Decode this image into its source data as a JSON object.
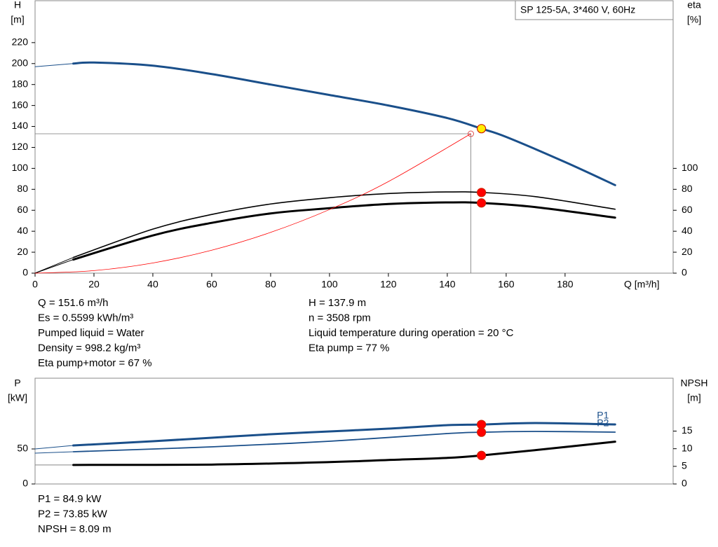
{
  "chart_data": [
    {
      "type": "line",
      "title": "SP 125-5A, 3*460 V, 60Hz",
      "ylabel": [
        "H",
        "[m]"
      ],
      "y2label": [
        "eta",
        "[%]"
      ],
      "xlabel": "Q [m³/h]",
      "xlim": [
        0,
        216.7
      ],
      "xticks": [
        0,
        20,
        40,
        60,
        80,
        100,
        120,
        140,
        160,
        180
      ],
      "ylim": [
        0,
        260
      ],
      "yticks": [
        0,
        20,
        40,
        60,
        80,
        100,
        120,
        140,
        160,
        180,
        200,
        220
      ],
      "y2lim": [
        0,
        260
      ],
      "y2ticks": [
        0,
        20,
        40,
        60,
        80,
        100
      ],
      "series": [
        {
          "color": "#1a4f8a",
          "width": 1,
          "axis": "y",
          "x": [
            0,
            13
          ],
          "values": [
            197,
            200
          ]
        },
        {
          "color": "#1a4f8a",
          "width": 3,
          "axis": "y",
          "x": [
            13,
            20,
            40,
            60,
            80,
            100,
            120,
            140,
            151.6,
            160,
            180,
            197
          ],
          "values": [
            200,
            201,
            198,
            190,
            180,
            170,
            160,
            148,
            137.9,
            130,
            106,
            84
          ]
        },
        {
          "color": "#000000",
          "width": 1,
          "axis": "y2",
          "x": [
            0,
            13
          ],
          "values": [
            0,
            15
          ]
        },
        {
          "color": "#000000",
          "width": 1,
          "axis": "y2",
          "x": [
            0,
            13
          ],
          "values": [
            0,
            13
          ]
        },
        {
          "color": "#000000",
          "width": 1.6,
          "axis": "y2",
          "x": [
            13,
            40,
            60,
            80,
            100,
            120,
            140,
            151.6,
            170,
            197
          ],
          "values": [
            15,
            42,
            56,
            66,
            72,
            76,
            77.5,
            77,
            73,
            61
          ]
        },
        {
          "color": "#000000",
          "width": 3,
          "axis": "y2",
          "x": [
            13,
            40,
            60,
            80,
            100,
            120,
            140,
            151.6,
            170,
            197
          ],
          "values": [
            13,
            36,
            48,
            57,
            62,
            66,
            67.5,
            67,
            63,
            53
          ]
        },
        {
          "color": "#ff0000",
          "width": 0.8,
          "axis": "y",
          "x": [
            0,
            20,
            40,
            60,
            80,
            100,
            120,
            148
          ],
          "values": [
            0,
            2.4,
            9.7,
            21.9,
            38.9,
            60.7,
            87.4,
            133
          ]
        }
      ],
      "guide": {
        "x": 148,
        "y": 133
      },
      "markers": [
        {
          "x": 151.6,
          "y": 137.9,
          "axis": "y",
          "color": "#ffee00"
        },
        {
          "x": 151.6,
          "y": 77,
          "axis": "y2",
          "color": "#ff0000"
        },
        {
          "x": 151.6,
          "y": 67,
          "axis": "y2",
          "color": "#ff0000"
        }
      ],
      "annotations": [
        [
          "Q = 151.6 m³/h",
          "Es = 0.5599 kWh/m³",
          "Pumped liquid = Water",
          "Density = 998.2 kg/m³",
          "Eta pump+motor = 67 %"
        ],
        [
          "H = 137.9 m",
          "n = 3508 rpm",
          "Liquid temperature during operation = 20 °C",
          "Eta pump = 77 %"
        ]
      ]
    },
    {
      "type": "line",
      "ylabel": [
        "P",
        "[kW]"
      ],
      "y2label": [
        "NPSH",
        "[m]"
      ],
      "xlim": [
        0,
        216.7
      ],
      "ylim": [
        0,
        151
      ],
      "yticks": [
        0,
        50
      ],
      "y2lim": [
        0,
        30
      ],
      "y2ticks": [
        0,
        5,
        10,
        15
      ],
      "series": [
        {
          "color": "#1a4f8a",
          "width": 1,
          "axis": "y",
          "x": [
            0,
            13
          ],
          "values": [
            50,
            55
          ]
        },
        {
          "name": "P1",
          "color": "#1a4f8a",
          "width": 3,
          "axis": "y",
          "x": [
            13,
            40,
            60,
            80,
            100,
            120,
            140,
            151.6,
            170,
            197
          ],
          "values": [
            55,
            61,
            66,
            71,
            75,
            79,
            84,
            84.9,
            87,
            85
          ]
        },
        {
          "color": "#1a4f8a",
          "width": 1,
          "axis": "y",
          "x": [
            0,
            13
          ],
          "values": [
            44,
            46
          ]
        },
        {
          "name": "P2",
          "color": "#1a4f8a",
          "width": 1.8,
          "axis": "y",
          "x": [
            13,
            60,
            100,
            140,
            151.6,
            170,
            197
          ],
          "values": [
            46,
            53,
            61,
            72,
            73.85,
            75,
            74
          ]
        },
        {
          "color": "#888888",
          "width": 1,
          "axis": "y2",
          "x": [
            0,
            13
          ],
          "values": [
            5.4,
            5.4
          ]
        },
        {
          "color": "#000000",
          "width": 3,
          "axis": "y2",
          "x": [
            13,
            60,
            100,
            120,
            140,
            151.6,
            170,
            197
          ],
          "values": [
            5.4,
            5.5,
            6.2,
            6.8,
            7.4,
            8.09,
            9.6,
            12
          ]
        }
      ],
      "markers": [
        {
          "x": 151.6,
          "y": 84.9,
          "axis": "y",
          "color": "#ff0000"
        },
        {
          "x": 151.6,
          "y": 73.85,
          "axis": "y",
          "color": "#ff0000"
        },
        {
          "x": 151.6,
          "y": 8.09,
          "axis": "y2",
          "color": "#ff0000"
        }
      ],
      "annotations": [
        [
          "P1 = 84.9 kW",
          "P2 = 73.85 kW",
          "NPSH = 8.09 m"
        ]
      ]
    }
  ]
}
